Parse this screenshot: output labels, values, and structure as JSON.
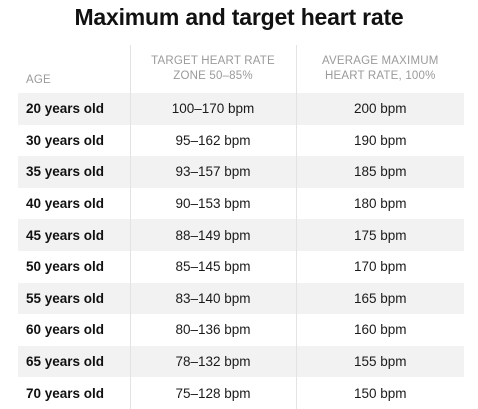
{
  "title": "Maximum and target heart rate",
  "table": {
    "headers": {
      "age": "AGE",
      "target_line1": "TARGET HEART RATE",
      "target_line2": "ZONE 50–85%",
      "max_line1": "AVERAGE MAXIMUM",
      "max_line2": "HEART RATE, 100%"
    },
    "rows": [
      {
        "age": "20 years old",
        "target": "100–170 bpm",
        "max": "200 bpm"
      },
      {
        "age": "30 years old",
        "target": "95–162 bpm",
        "max": "190 bpm"
      },
      {
        "age": "35 years old",
        "target": "93–157 bpm",
        "max": "185 bpm"
      },
      {
        "age": "40 years old",
        "target": "90–153 bpm",
        "max": "180 bpm"
      },
      {
        "age": "45 years old",
        "target": "88–149 bpm",
        "max": "175 bpm"
      },
      {
        "age": "50 years old",
        "target": "85–145 bpm",
        "max": "170 bpm"
      },
      {
        "age": "55 years old",
        "target": "83–140 bpm",
        "max": "165 bpm"
      },
      {
        "age": "60 years old",
        "target": "80–136 bpm",
        "max": "160 bpm"
      },
      {
        "age": "65 years old",
        "target": "78–132 bpm",
        "max": "155 bpm"
      },
      {
        "age": "70 years old",
        "target": "75–128 bpm",
        "max": "150 bpm"
      }
    ]
  }
}
